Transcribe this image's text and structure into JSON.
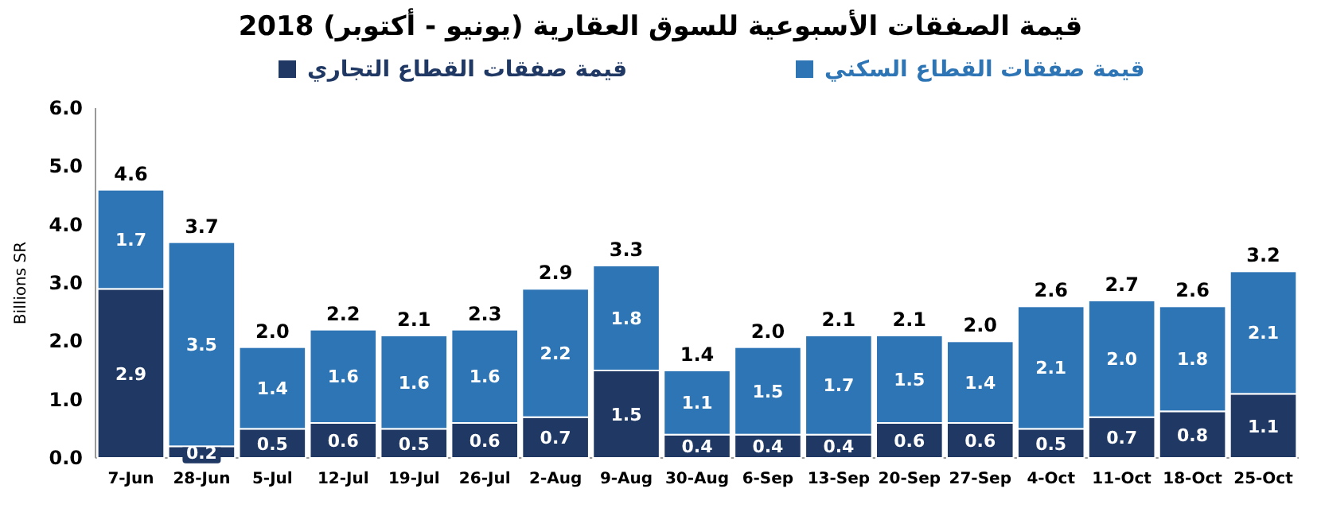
{
  "chart_data": {
    "type": "bar",
    "title": "قيمة الصفقات الأسبوعية للسوق العقارية (يونيو - أكتوبر) 2018",
    "ylabel": "Billions SR",
    "categories": [
      "7-Jun",
      "28-Jun",
      "5-Jul",
      "12-Jul",
      "19-Jul",
      "26-Jul",
      "2-Aug",
      "9-Aug",
      "30-Aug",
      "6-Sep",
      "13-Sep",
      "20-Sep",
      "27-Sep",
      "4-Oct",
      "11-Oct",
      "18-Oct",
      "25-Oct"
    ],
    "series": [
      {
        "name": "قيمة صفقات القطاع التجاري",
        "color": "#203864",
        "values": [
          2.9,
          0.2,
          0.5,
          0.6,
          0.5,
          0.6,
          0.7,
          1.5,
          0.4,
          0.4,
          0.4,
          0.6,
          0.6,
          0.5,
          0.7,
          0.8,
          1.1
        ],
        "value_labels": [
          "2.9",
          "0.2",
          "0.5",
          "0.6",
          "0.5",
          "0.6",
          "0.7",
          "1.5",
          "0.4",
          "0.4",
          "0.4",
          "0.6",
          "0.6",
          "0.5",
          "0.7",
          "0.8",
          "1.1"
        ]
      },
      {
        "name": "قيمة صفقات القطاع السكني",
        "color": "#2e75b6",
        "values": [
          1.7,
          3.5,
          1.4,
          1.6,
          1.6,
          1.6,
          2.2,
          1.8,
          1.1,
          1.5,
          1.7,
          1.5,
          1.4,
          2.1,
          2.0,
          1.8,
          2.1
        ],
        "value_labels": [
          "1.7",
          "3.5",
          "1.4",
          "1.6",
          "1.6",
          "1.6",
          "2.2",
          "1.8",
          "1.1",
          "1.5",
          "1.7",
          "1.5",
          "1.4",
          "2.1",
          "2.0",
          "1.8",
          "2.1"
        ]
      }
    ],
    "stacked": true,
    "totals": [
      "4.6",
      "3.7",
      "2.0",
      "2.2",
      "2.1",
      "2.3",
      "2.9",
      "3.3",
      "1.4",
      "2.0",
      "2.1",
      "2.1",
      "2.0",
      "2.6",
      "2.7",
      "2.6",
      "3.2"
    ],
    "ylim": [
      0,
      6
    ],
    "yticks": [
      {
        "value": 0,
        "label": "0.0"
      },
      {
        "value": 1,
        "label": "1.0"
      },
      {
        "value": 2,
        "label": "2.0"
      },
      {
        "value": 3,
        "label": "3.0"
      },
      {
        "value": 4,
        "label": "4.0"
      },
      {
        "value": 5,
        "label": "5.0"
      },
      {
        "value": 6,
        "label": "6.0"
      }
    ],
    "legend": "top"
  }
}
